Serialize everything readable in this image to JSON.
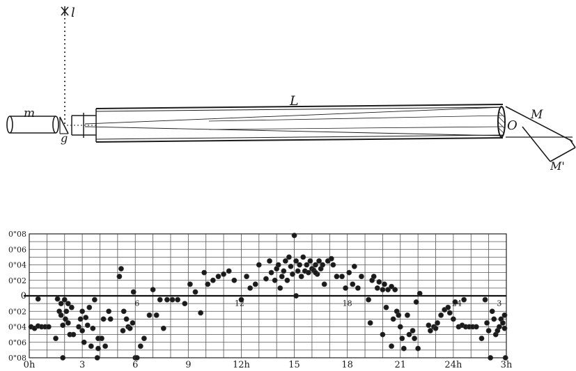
{
  "diagram": {
    "labels": {
      "star": "l",
      "rod": "m",
      "prism": "g",
      "tube": "L",
      "objective": "O",
      "mirror1": "M",
      "mirror2": "M'"
    }
  },
  "chart_data": {
    "type": "scatter",
    "title": "",
    "xlabel": "",
    "ylabel": "",
    "xlim": [
      0,
      27
    ],
    "ylim": [
      -0.08,
      0.08
    ],
    "grid": true,
    "zero_line": true,
    "x_ticks": [
      {
        "x": 0,
        "label": "0h"
      },
      {
        "x": 3,
        "label": "3"
      },
      {
        "x": 6,
        "label": "6"
      },
      {
        "x": 9,
        "label": "9"
      },
      {
        "x": 12,
        "label": "12h"
      },
      {
        "x": 15,
        "label": "15"
      },
      {
        "x": 18,
        "label": "18"
      },
      {
        "x": 21,
        "label": "21"
      },
      {
        "x": 24,
        "label": "24h"
      },
      {
        "x": 27,
        "label": "3h"
      }
    ],
    "y_ticks": [
      {
        "y": 0.08,
        "label": "0\"08"
      },
      {
        "y": 0.06,
        "label": "0\"06"
      },
      {
        "y": 0.04,
        "label": "0\"04"
      },
      {
        "y": 0.02,
        "label": "0\"02"
      },
      {
        "y": 0,
        "label": "0"
      },
      {
        "y": -0.02,
        "label": "0\"02"
      },
      {
        "y": -0.04,
        "label": "0\"04"
      },
      {
        "y": -0.06,
        "label": "0\"06"
      },
      {
        "y": -0.08,
        "label": "0\"08"
      }
    ],
    "inline_labels": [
      {
        "x": 6.1,
        "y": -0.004,
        "text": "6"
      },
      {
        "x": 11.9,
        "y": -0.004,
        "text": "12"
      },
      {
        "x": 18.0,
        "y": -0.004,
        "text": "18"
      },
      {
        "x": 24.2,
        "y": -0.004,
        "text": "24"
      },
      {
        "x": 26.6,
        "y": -0.004,
        "text": "3"
      }
    ],
    "points": [
      [
        0.1,
        -0.04
      ],
      [
        0.3,
        -0.042
      ],
      [
        0.5,
        -0.039
      ],
      [
        0.7,
        -0.04
      ],
      [
        0.9,
        -0.04
      ],
      [
        1.1,
        -0.04
      ],
      [
        0.5,
        -0.004
      ],
      [
        1.5,
        -0.055
      ],
      [
        1.6,
        -0.004
      ],
      [
        1.7,
        -0.02
      ],
      [
        1.8,
        -0.025
      ],
      [
        1.8,
        -0.01
      ],
      [
        1.9,
        -0.038
      ],
      [
        2.0,
        -0.005
      ],
      [
        2.05,
        -0.03
      ],
      [
        2.1,
        -0.02
      ],
      [
        2.2,
        -0.035
      ],
      [
        2.2,
        -0.01
      ],
      [
        2.3,
        -0.05
      ],
      [
        2.4,
        -0.015
      ],
      [
        2.5,
        -0.05
      ],
      [
        1.9,
        -0.08
      ],
      [
        2.8,
        -0.04
      ],
      [
        2.9,
        -0.03
      ],
      [
        3.0,
        -0.045
      ],
      [
        3.0,
        -0.02
      ],
      [
        3.1,
        -0.06
      ],
      [
        3.2,
        -0.028
      ],
      [
        3.3,
        -0.038
      ],
      [
        3.4,
        -0.015
      ],
      [
        3.5,
        -0.065
      ],
      [
        3.6,
        -0.042
      ],
      [
        3.7,
        -0.005
      ],
      [
        3.9,
        -0.055
      ],
      [
        3.9,
        -0.068
      ],
      [
        3.85,
        -0.08
      ],
      [
        4.2,
        -0.03
      ],
      [
        4.5,
        -0.02
      ],
      [
        4.6,
        -0.03
      ],
      [
        4.1,
        -0.055
      ],
      [
        4.3,
        -0.065
      ],
      [
        5.1,
        0.025
      ],
      [
        5.2,
        0.035
      ],
      [
        5.3,
        -0.045
      ],
      [
        5.35,
        -0.02
      ],
      [
        5.5,
        -0.03
      ],
      [
        5.6,
        -0.04
      ],
      [
        5.7,
        -0.042
      ],
      [
        5.85,
        -0.035
      ],
      [
        6.0,
        -0.08
      ],
      [
        6.1,
        -0.08
      ],
      [
        5.9,
        0.005
      ],
      [
        6.3,
        -0.065
      ],
      [
        6.5,
        -0.055
      ],
      [
        6.8,
        -0.025
      ],
      [
        7.0,
        0.008
      ],
      [
        7.2,
        -0.025
      ],
      [
        7.4,
        -0.005
      ],
      [
        7.6,
        -0.042
      ],
      [
        7.8,
        -0.005
      ],
      [
        8.1,
        -0.005
      ],
      [
        8.4,
        -0.005
      ],
      [
        8.8,
        -0.01
      ],
      [
        9.1,
        0.015
      ],
      [
        9.4,
        0.005
      ],
      [
        9.7,
        -0.022
      ],
      [
        9.9,
        0.03
      ],
      [
        10.1,
        0.015
      ],
      [
        10.4,
        0.02
      ],
      [
        10.7,
        0.025
      ],
      [
        11.0,
        0.028
      ],
      [
        11.3,
        0.032
      ],
      [
        11.6,
        0.02
      ],
      [
        12.0,
        -0.005
      ],
      [
        12.3,
        0.025
      ],
      [
        12.5,
        0.01
      ],
      [
        12.8,
        0.015
      ],
      [
        13.0,
        0.04
      ],
      [
        13.4,
        0.022
      ],
      [
        13.6,
        0.045
      ],
      [
        13.7,
        0.03
      ],
      [
        13.9,
        0.02
      ],
      [
        14.0,
        0.035
      ],
      [
        14.1,
        0.04
      ],
      [
        14.2,
        0.01
      ],
      [
        14.3,
        0.025
      ],
      [
        14.4,
        0.032
      ],
      [
        14.5,
        0.045
      ],
      [
        14.6,
        0.02
      ],
      [
        14.7,
        0.05
      ],
      [
        14.8,
        0.038
      ],
      [
        14.9,
        0.028
      ],
      [
        15.0,
        0.078
      ],
      [
        15.1,
        0.045
      ],
      [
        15.2,
        0.032
      ],
      [
        15.3,
        0.04
      ],
      [
        15.4,
        0.025
      ],
      [
        15.5,
        0.05
      ],
      [
        15.6,
        0.032
      ],
      [
        15.7,
        0.04
      ],
      [
        15.8,
        0.03
      ],
      [
        15.9,
        0.045
      ],
      [
        16.0,
        0.035
      ],
      [
        16.1,
        0.033
      ],
      [
        16.2,
        0.04
      ],
      [
        16.3,
        0.028
      ],
      [
        16.4,
        0.045
      ],
      [
        16.5,
        0.035
      ],
      [
        16.6,
        0.04
      ],
      [
        16.7,
        0.015
      ],
      [
        16.9,
        0.045
      ],
      [
        17.1,
        0.048
      ],
      [
        17.2,
        0.04
      ],
      [
        15.1,
        0.0
      ],
      [
        16.2,
        0.03
      ],
      [
        17.4,
        0.025
      ],
      [
        17.7,
        0.025
      ],
      [
        17.9,
        0.01
      ],
      [
        18.1,
        0.03
      ],
      [
        18.3,
        0.015
      ],
      [
        18.4,
        0.038
      ],
      [
        18.6,
        0.01
      ],
      [
        18.8,
        0.025
      ],
      [
        19.2,
        -0.005
      ],
      [
        19.3,
        -0.035
      ],
      [
        19.4,
        0.02
      ],
      [
        19.5,
        0.025
      ],
      [
        19.7,
        0.01
      ],
      [
        19.8,
        0.018
      ],
      [
        20.0,
        0.008
      ],
      [
        20.1,
        0.015
      ],
      [
        20.3,
        0.008
      ],
      [
        20.5,
        0.012
      ],
      [
        20.7,
        0.008
      ],
      [
        20.0,
        -0.05
      ],
      [
        20.2,
        -0.015
      ],
      [
        20.5,
        -0.065
      ],
      [
        20.6,
        -0.03
      ],
      [
        20.8,
        -0.02
      ],
      [
        20.9,
        -0.025
      ],
      [
        21.0,
        -0.04
      ],
      [
        21.1,
        -0.055
      ],
      [
        21.2,
        -0.068
      ],
      [
        21.4,
        -0.025
      ],
      [
        21.5,
        -0.05
      ],
      [
        21.7,
        -0.045
      ],
      [
        21.8,
        -0.055
      ],
      [
        21.9,
        -0.008
      ],
      [
        22.0,
        -0.068
      ],
      [
        22.1,
        0.003
      ],
      [
        22.6,
        -0.038
      ],
      [
        22.7,
        -0.045
      ],
      [
        22.9,
        -0.04
      ],
      [
        23.0,
        -0.042
      ],
      [
        23.1,
        -0.035
      ],
      [
        23.3,
        -0.025
      ],
      [
        23.5,
        -0.018
      ],
      [
        23.7,
        -0.015
      ],
      [
        23.8,
        -0.022
      ],
      [
        24.0,
        -0.03
      ],
      [
        24.1,
        -0.008
      ],
      [
        24.3,
        -0.04
      ],
      [
        24.5,
        -0.038
      ],
      [
        24.7,
        -0.04
      ],
      [
        24.9,
        -0.04
      ],
      [
        25.1,
        -0.04
      ],
      [
        25.3,
        -0.04
      ],
      [
        24.6,
        -0.005
      ],
      [
        25.6,
        -0.055
      ],
      [
        25.8,
        -0.005
      ],
      [
        25.9,
        -0.035
      ],
      [
        26.0,
        -0.045
      ],
      [
        26.1,
        -0.08
      ],
      [
        26.2,
        -0.02
      ],
      [
        26.3,
        -0.03
      ],
      [
        26.4,
        -0.05
      ],
      [
        26.5,
        -0.045
      ],
      [
        26.6,
        -0.04
      ],
      [
        26.7,
        -0.03
      ],
      [
        26.8,
        -0.035
      ],
      [
        26.9,
        -0.042
      ],
      [
        26.9,
        -0.025
      ],
      [
        26.95,
        -0.08
      ]
    ]
  }
}
